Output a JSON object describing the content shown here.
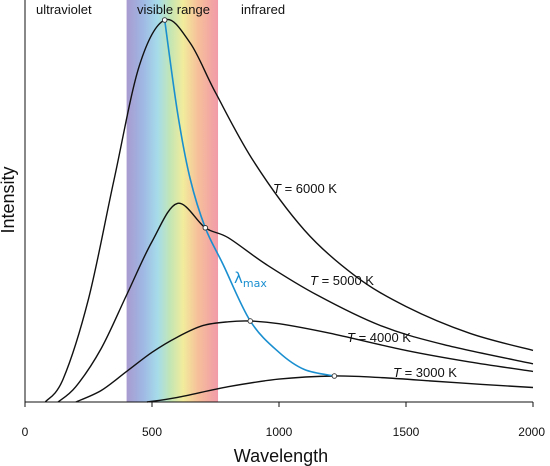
{
  "chart_data": {
    "type": "line",
    "title": "",
    "xlabel": "Wavelength",
    "ylabel": "Intensity",
    "xlim": [
      0,
      2000
    ],
    "ylim": [
      0,
      1
    ],
    "xticks": [
      "0",
      "500",
      "1000",
      "1500",
      "2000"
    ],
    "yticks": [],
    "grid": false,
    "bands": [
      {
        "label": "ultraviolet",
        "range": [
          0,
          400
        ]
      },
      {
        "label": "visible range",
        "range": [
          400,
          760
        ]
      },
      {
        "label": "infrared",
        "range": [
          760,
          2000
        ]
      }
    ],
    "series": [
      {
        "name": "T = 6000 K",
        "T_var": "T",
        "T_rest": " = 6000 K",
        "T": 6000,
        "color": "#111111",
        "x": [
          80,
          150,
          250,
          350,
          450,
          550,
          650,
          750,
          900,
          1100,
          1300,
          1500,
          1750,
          2000
        ],
        "y": [
          0.0,
          0.06,
          0.27,
          0.58,
          0.88,
          1.0,
          0.94,
          0.81,
          0.63,
          0.45,
          0.33,
          0.25,
          0.18,
          0.135
        ]
      },
      {
        "name": "T = 5000 K",
        "T_var": "T",
        "T_rest": " = 5000 K",
        "T": 5000,
        "color": "#111111",
        "x": [
          130,
          200,
          300,
          400,
          500,
          600,
          710,
          800,
          950,
          1150,
          1400,
          1650,
          2000
        ],
        "y": [
          0.0,
          0.04,
          0.14,
          0.28,
          0.42,
          0.52,
          0.456,
          0.43,
          0.36,
          0.28,
          0.2,
          0.15,
          0.1
        ]
      },
      {
        "name": "T = 4000 K",
        "T_var": "T",
        "T_rest": " = 4000 K",
        "T": 4000,
        "color": "#111111",
        "x": [
          200,
          300,
          400,
          500,
          600,
          700,
          800,
          887,
          1000,
          1200,
          1500,
          1750,
          2000
        ],
        "y": [
          0.0,
          0.03,
          0.08,
          0.13,
          0.17,
          0.2,
          0.21,
          0.212,
          0.205,
          0.18,
          0.135,
          0.105,
          0.08
        ]
      },
      {
        "name": "T = 3000 K",
        "T_var": "T",
        "T_rest": " = 3000 K",
        "T": 3000,
        "color": "#111111",
        "x": [
          480,
          600,
          800,
          1000,
          1218,
          1400,
          1600,
          1800,
          2000
        ],
        "y": [
          0.0,
          0.012,
          0.04,
          0.06,
          0.068,
          0.064,
          0.055,
          0.046,
          0.038
        ]
      }
    ],
    "lambda_max": {
      "label": "λ",
      "subscript": "max",
      "color": "#1a8fd0",
      "x": [
        550,
        600,
        650,
        710,
        780,
        887,
        1000,
        1100,
        1218
      ],
      "y": [
        1.0,
        0.76,
        0.585,
        0.456,
        0.36,
        0.212,
        0.13,
        0.085,
        0.068
      ]
    }
  }
}
